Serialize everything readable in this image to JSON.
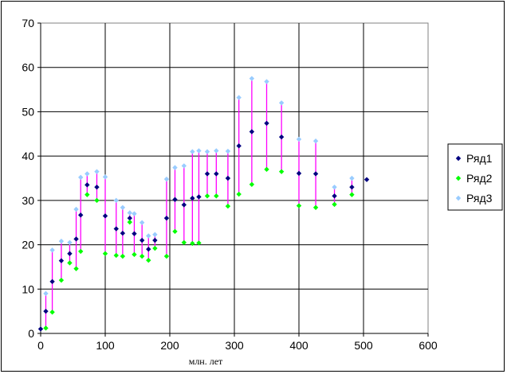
{
  "chart_data": {
    "type": "scatter",
    "title": "",
    "xlabel": "млн. лет",
    "ylabel": "",
    "xlim": [
      0,
      600
    ],
    "ylim": [
      0,
      70
    ],
    "xticks": [
      0,
      100,
      200,
      300,
      400,
      500,
      600
    ],
    "yticks": [
      0,
      10,
      20,
      30,
      40,
      50,
      60,
      70
    ],
    "grid": true,
    "legend_position": "right",
    "high_low_lines": true,
    "x": [
      0,
      8,
      18,
      32,
      45,
      55,
      62,
      72,
      87,
      100,
      117,
      127,
      138,
      145,
      157,
      167,
      177,
      195,
      208,
      222,
      235,
      245,
      258,
      272,
      290,
      307,
      327,
      350,
      373,
      400,
      426,
      455,
      482,
      505
    ],
    "series": [
      {
        "name": "Ряд1",
        "color": "#000080",
        "marker": "diamond",
        "values": [
          1,
          5,
          11.7,
          16.4,
          18,
          21.3,
          26.7,
          33.5,
          33,
          26.5,
          23.6,
          22.6,
          26,
          22.5,
          21,
          19,
          21,
          26,
          30.2,
          29,
          30.5,
          30.8,
          36,
          36,
          35,
          42.3,
          45.5,
          47.4,
          44.3,
          36.1,
          36,
          31,
          33,
          34.7
        ]
      },
      {
        "name": "Ряд2",
        "color": "#00ff00",
        "marker": "diamond",
        "values": [
          null,
          1.2,
          4.8,
          12,
          15.9,
          14.6,
          18.5,
          31.3,
          30,
          18,
          17.6,
          17.4,
          25.1,
          17.8,
          17.4,
          16.5,
          19.2,
          17.4,
          23,
          20.5,
          20.3,
          20.4,
          31,
          31,
          28.7,
          31.4,
          33.6,
          37,
          36.5,
          28.8,
          28.4,
          29.1,
          31.3,
          null
        ]
      },
      {
        "name": "Ряд3",
        "color": "#99ccff",
        "marker": "diamond",
        "values": [
          null,
          9,
          18.8,
          20.8,
          20.5,
          28,
          35.2,
          36,
          36.5,
          35.3,
          30,
          28.4,
          27.2,
          27,
          25,
          22,
          22.3,
          34.8,
          37.4,
          37.8,
          41,
          41.2,
          41,
          41.2,
          41.1,
          53.2,
          57.5,
          56.8,
          52,
          43.8,
          43.4,
          33,
          35,
          null
        ]
      }
    ],
    "high_low_line_color": "#ff00ff"
  }
}
